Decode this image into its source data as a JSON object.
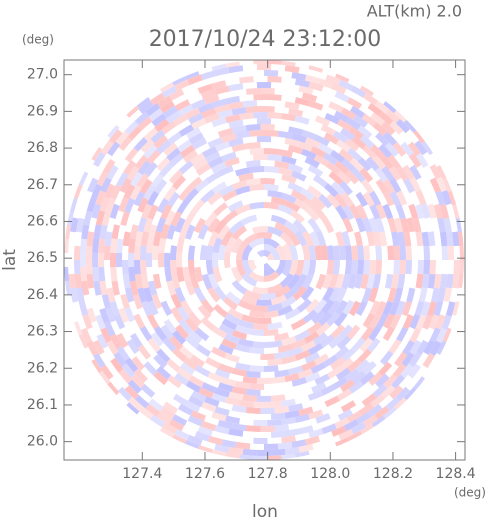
{
  "chart_data": {
    "type": "radar-ppi",
    "title": "2017/10/24 23:12:00",
    "altitude_label": "ALT(km) 2.0",
    "xlabel": "lon",
    "ylabel": "lat",
    "x_unit": "(deg)",
    "y_unit": "(deg)",
    "xlim": [
      127.15,
      128.43
    ],
    "ylim": [
      25.95,
      27.04
    ],
    "xticks": [
      127.4,
      127.6,
      127.8,
      {
        "value": 128,
        "label": "128.0"
      },
      128.2,
      128.4
    ],
    "yticks": [
      {
        "value": 26,
        "label": "26.0"
      },
      26.1,
      26.2,
      26.3,
      26.4,
      26.5,
      26.6,
      26.7,
      26.8,
      26.9,
      {
        "value": 27,
        "label": "27.0"
      }
    ],
    "colors": [
      "#ffb3b3",
      "#b8b8ff"
    ]
  }
}
